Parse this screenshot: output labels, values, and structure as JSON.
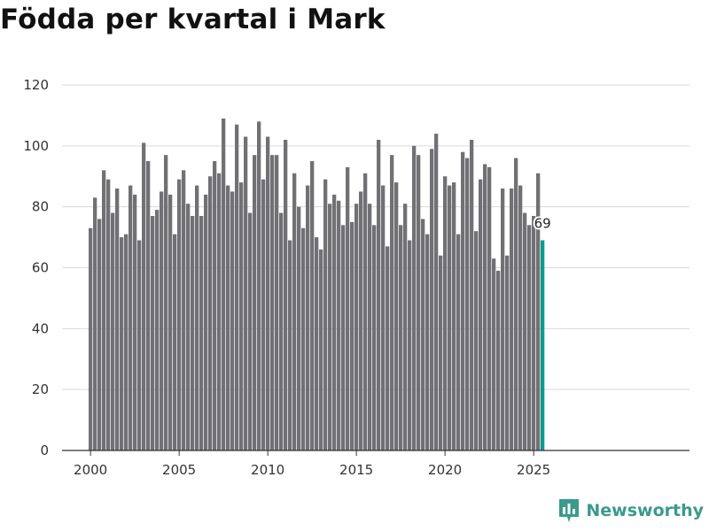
{
  "title": "Födda per kvartal i Mark",
  "brand": "Newsworthy",
  "colors": {
    "bar": "#717074",
    "highlight": "#0b9b8a",
    "grid": "#d9d9d9",
    "axis": "#333333",
    "brand": "#3a9a8d"
  },
  "chart_data": {
    "type": "bar",
    "title": "Födda per kvartal i Mark",
    "xlabel": "",
    "ylabel": "",
    "ylim": [
      0,
      120
    ],
    "yticks": [
      0,
      20,
      40,
      60,
      80,
      100,
      120
    ],
    "xticks": [
      2000,
      2005,
      2010,
      2015,
      2020,
      2025
    ],
    "grid": true,
    "start_year": 2000,
    "start_quarter": 1,
    "values": [
      73,
      83,
      76,
      92,
      89,
      78,
      86,
      70,
      71,
      87,
      84,
      69,
      101,
      95,
      77,
      79,
      85,
      97,
      84,
      71,
      89,
      92,
      81,
      77,
      87,
      77,
      84,
      90,
      95,
      91,
      109,
      87,
      85,
      107,
      88,
      103,
      78,
      97,
      108,
      89,
      103,
      97,
      97,
      78,
      102,
      69,
      91,
      80,
      73,
      87,
      95,
      70,
      66,
      89,
      81,
      84,
      82,
      74,
      93,
      75,
      81,
      85,
      91,
      81,
      74,
      102,
      87,
      67,
      97,
      88,
      74,
      81,
      69,
      100,
      97,
      76,
      71,
      99,
      104,
      64,
      90,
      87,
      88,
      71,
      98,
      96,
      102,
      72,
      89,
      94,
      93,
      63,
      59,
      86,
      64,
      86,
      96,
      87,
      78,
      74,
      77,
      91,
      69
    ],
    "highlight_last": true,
    "last_value_label": "69"
  }
}
